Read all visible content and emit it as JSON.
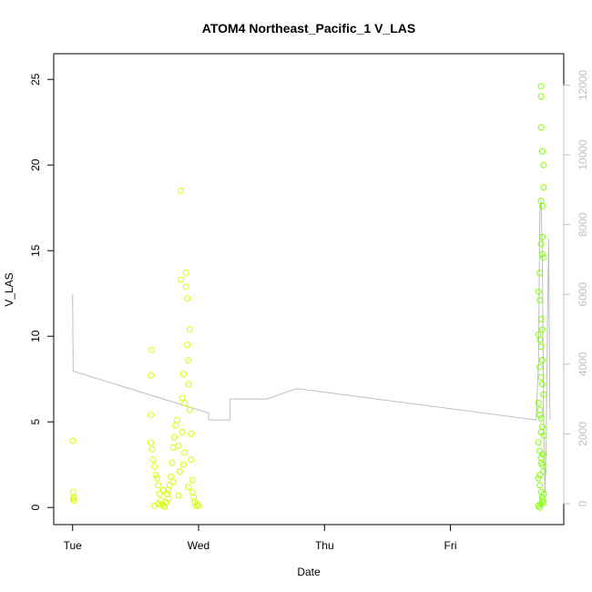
{
  "chart_data": {
    "type": "scatter",
    "title": "ATOM4 Northeast_Pacific_1 V_LAS",
    "xlabel": "Date",
    "ylabel": "V_LAS",
    "x_ticks": [
      "Tue",
      "Wed",
      "Thu",
      "Fri"
    ],
    "x_tick_values_days": [
      0,
      1,
      2,
      3
    ],
    "xlim_days": [
      -0.15,
      3.9
    ],
    "ylim": [
      -1,
      26.5
    ],
    "y_ticks": [
      0,
      5,
      10,
      15,
      20,
      25
    ],
    "y2lim": [
      -600,
      12900
    ],
    "y2_ticks": [
      0,
      2000,
      4000,
      6000,
      8000,
      10000,
      12000
    ],
    "grid": false,
    "colors": {
      "frame": "#000000",
      "line_series": "#bebebe",
      "points_early": "#d4ff00",
      "points_late": "#7fff00"
    },
    "line_series": {
      "name": "",
      "axis": "right",
      "points": [
        [
          0.0,
          6000
        ],
        [
          0.005,
          3800
        ],
        [
          1.08,
          2600
        ],
        [
          1.08,
          2400
        ],
        [
          1.25,
          2400
        ],
        [
          1.25,
          3000
        ],
        [
          1.54,
          3000
        ],
        [
          1.78,
          3300
        ],
        [
          3.68,
          2400
        ],
        [
          3.7,
          4000
        ],
        [
          3.71,
          8300
        ],
        [
          3.72,
          8700
        ],
        [
          3.73,
          7000
        ],
        [
          3.74,
          2400
        ],
        [
          3.75,
          300
        ],
        [
          3.76,
          1500
        ],
        [
          3.77,
          5000
        ],
        [
          3.78,
          7600
        ],
        [
          3.79,
          2400
        ]
      ]
    },
    "series": [
      {
        "name": "",
        "color_key": "points_early",
        "points": [
          [
            0.0,
            3.9
          ],
          [
            0.005,
            0.9
          ],
          [
            0.01,
            0.6
          ],
          [
            0.01,
            0.4
          ],
          [
            0.005,
            0.5
          ],
          [
            0.62,
            7.7
          ],
          [
            0.63,
            9.2
          ],
          [
            0.62,
            5.4
          ],
          [
            0.62,
            3.8
          ],
          [
            0.63,
            3.4
          ],
          [
            0.64,
            2.8
          ],
          [
            0.65,
            2.4
          ],
          [
            0.66,
            1.9
          ],
          [
            0.67,
            1.7
          ],
          [
            0.68,
            1.3
          ],
          [
            0.69,
            0.8
          ],
          [
            0.7,
            0.4
          ],
          [
            0.71,
            0.2
          ],
          [
            0.72,
            0.1
          ],
          [
            0.73,
            0.05
          ],
          [
            0.74,
            0.3
          ],
          [
            0.75,
            0.8
          ],
          [
            0.76,
            1.0
          ],
          [
            0.77,
            1.3
          ],
          [
            0.78,
            1.8
          ],
          [
            0.79,
            2.6
          ],
          [
            0.8,
            3.5
          ],
          [
            0.81,
            4.1
          ],
          [
            0.82,
            4.8
          ],
          [
            0.83,
            5.1
          ],
          [
            0.84,
            3.6
          ],
          [
            0.85,
            2.1
          ],
          [
            0.86,
            18.5
          ],
          [
            0.86,
            13.3
          ],
          [
            0.87,
            6.4
          ],
          [
            0.87,
            4.4
          ],
          [
            0.88,
            7.8
          ],
          [
            0.89,
            6.1
          ],
          [
            0.89,
            3.2
          ],
          [
            0.9,
            12.9
          ],
          [
            0.9,
            13.7
          ],
          [
            0.91,
            12.2
          ],
          [
            0.91,
            9.5
          ],
          [
            0.92,
            8.6
          ],
          [
            0.92,
            7.2
          ],
          [
            0.93,
            10.4
          ],
          [
            0.93,
            5.7
          ],
          [
            0.94,
            4.3
          ],
          [
            0.94,
            2.8
          ],
          [
            0.95,
            1.6
          ],
          [
            0.96,
            0.6
          ],
          [
            0.97,
            0.3
          ],
          [
            0.98,
            0.1
          ],
          [
            0.99,
            0.2
          ],
          [
            1.0,
            0.1
          ],
          [
            0.65,
            0.1
          ],
          [
            0.68,
            0.2
          ],
          [
            0.72,
            1.0
          ],
          [
            0.76,
            0.5
          ],
          [
            0.8,
            1.5
          ],
          [
            0.84,
            0.7
          ],
          [
            0.88,
            2.5
          ],
          [
            0.92,
            1.2
          ],
          [
            0.95,
            0.9
          ]
        ]
      },
      {
        "name": "",
        "color_key": "points_late",
        "points": [
          [
            3.72,
            24.6
          ],
          [
            3.72,
            24.0
          ],
          [
            3.72,
            22.2
          ],
          [
            3.73,
            20.8
          ],
          [
            3.74,
            20.0
          ],
          [
            3.74,
            18.7
          ],
          [
            3.72,
            17.9
          ],
          [
            3.73,
            17.6
          ],
          [
            3.73,
            15.8
          ],
          [
            3.72,
            15.4
          ],
          [
            3.73,
            14.8
          ],
          [
            3.74,
            14.6
          ],
          [
            3.71,
            13.7
          ],
          [
            3.7,
            12.6
          ],
          [
            3.71,
            12.1
          ],
          [
            3.72,
            11.0
          ],
          [
            3.73,
            10.4
          ],
          [
            3.7,
            10.1
          ],
          [
            3.71,
            9.8
          ],
          [
            3.72,
            9.4
          ],
          [
            3.73,
            8.6
          ],
          [
            3.71,
            8.2
          ],
          [
            3.72,
            7.6
          ],
          [
            3.73,
            7.2
          ],
          [
            3.74,
            6.6
          ],
          [
            3.7,
            6.1
          ],
          [
            3.71,
            5.7
          ],
          [
            3.72,
            5.2
          ],
          [
            3.73,
            4.7
          ],
          [
            3.74,
            4.2
          ],
          [
            3.7,
            3.8
          ],
          [
            3.71,
            3.3
          ],
          [
            3.72,
            2.9
          ],
          [
            3.73,
            2.5
          ],
          [
            3.74,
            2.1
          ],
          [
            3.7,
            1.7
          ],
          [
            3.71,
            1.3
          ],
          [
            3.72,
            0.9
          ],
          [
            3.73,
            0.6
          ],
          [
            3.74,
            0.3
          ],
          [
            3.7,
            0.1
          ],
          [
            3.71,
            0.0
          ],
          [
            3.72,
            0.2
          ],
          [
            3.73,
            0.4
          ],
          [
            3.74,
            0.8
          ],
          [
            3.71,
            1.9
          ],
          [
            3.72,
            2.6
          ],
          [
            3.73,
            3.1
          ],
          [
            3.72,
            4.4
          ],
          [
            3.71,
            5.4
          ]
        ]
      }
    ]
  }
}
